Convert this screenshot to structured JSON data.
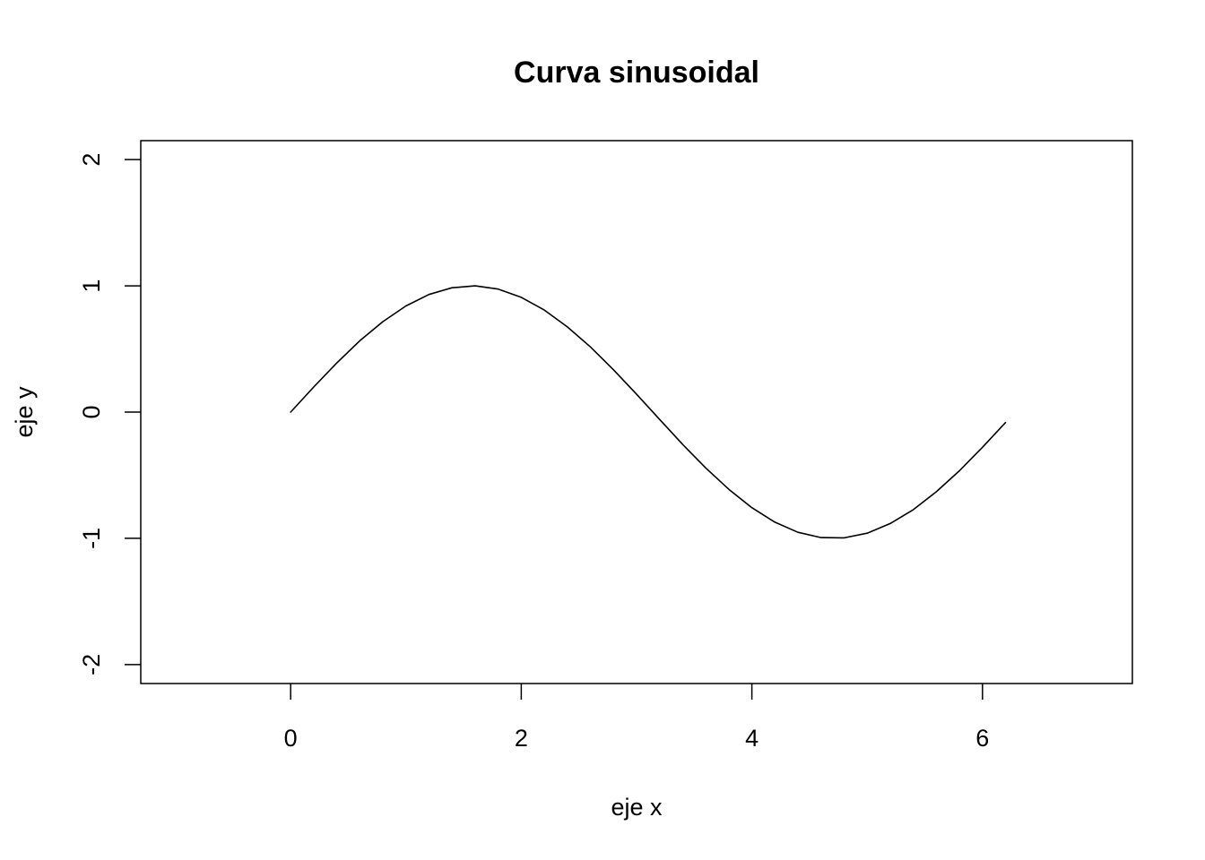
{
  "chart_data": {
    "type": "line",
    "title": "Curva sinusoidal",
    "xlabel": "eje x",
    "ylabel": "eje y",
    "xlim": [
      -1.3,
      7.3
    ],
    "ylim": [
      -2.15,
      2.15
    ],
    "x_ticks": [
      0,
      2,
      4,
      6
    ],
    "x_tick_labels": [
      "0",
      "2",
      "4",
      "6"
    ],
    "y_ticks": [
      -2,
      -1,
      0,
      1,
      2
    ],
    "y_tick_labels": [
      "-2",
      "-1",
      "0",
      "1",
      "2"
    ],
    "grid": false,
    "line_color": "#000000",
    "series": [
      {
        "x": [
          0,
          0.2,
          0.4,
          0.6,
          0.8,
          1.0,
          1.2,
          1.4,
          1.6,
          1.8,
          2.0,
          2.2,
          2.4,
          2.6,
          2.8,
          3.0,
          3.2,
          3.4,
          3.6,
          3.8,
          4.0,
          4.2,
          4.4,
          4.6,
          4.8,
          5.0,
          5.2,
          5.4,
          5.6,
          5.8,
          6.0,
          6.2
        ],
        "y": [
          0.0,
          0.199,
          0.389,
          0.565,
          0.717,
          0.841,
          0.932,
          0.985,
          1.0,
          0.974,
          0.909,
          0.808,
          0.675,
          0.516,
          0.335,
          0.141,
          -0.058,
          -0.256,
          -0.443,
          -0.612,
          -0.757,
          -0.872,
          -0.952,
          -0.994,
          -0.996,
          -0.959,
          -0.883,
          -0.773,
          -0.631,
          -0.465,
          -0.279,
          -0.083
        ]
      }
    ]
  }
}
